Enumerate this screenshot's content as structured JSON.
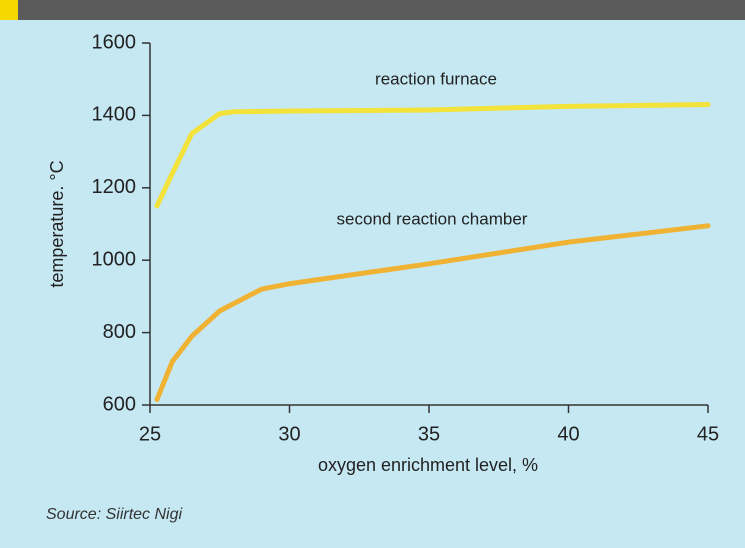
{
  "chart_data": {
    "type": "line",
    "xlabel": "oxygen enrichment level, %",
    "ylabel": "temperature. °C",
    "annotations": [
      "reaction furnace",
      "second reaction chamber"
    ],
    "source": "Source: Siirtec Nigi",
    "xlim": [
      25,
      45
    ],
    "xticks": [
      25,
      30,
      35,
      40,
      45
    ],
    "ylim": [
      600,
      1600
    ],
    "yticks": [
      600,
      800,
      1000,
      1200,
      1400,
      1600
    ],
    "series": [
      {
        "name": "reaction furnace",
        "color": "#f2e23a",
        "x": [
          25.25,
          25.8,
          26.5,
          27.5,
          28,
          30,
          35,
          40,
          45
        ],
        "values": [
          1150,
          1240,
          1350,
          1405,
          1410,
          1412,
          1415,
          1425,
          1430
        ]
      },
      {
        "name": "second reaction chamber",
        "color": "#f0b233",
        "x": [
          25.25,
          25.8,
          26.5,
          27.5,
          29,
          30,
          35,
          40,
          45
        ],
        "values": [
          615,
          720,
          790,
          860,
          920,
          935,
          990,
          1050,
          1095
        ]
      }
    ]
  }
}
